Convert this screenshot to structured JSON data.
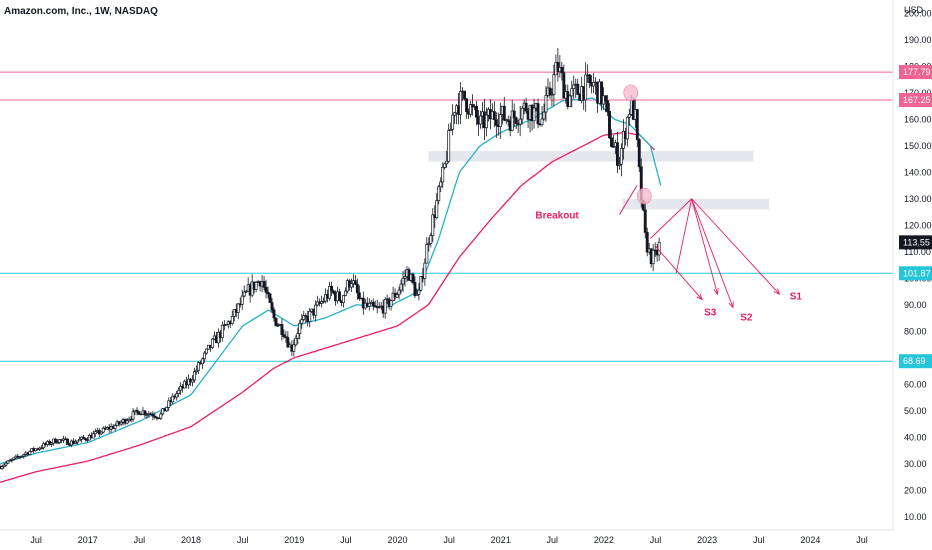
{
  "header": {
    "title": "Amazon.com, Inc., 1W, NASDAQ"
  },
  "colors": {
    "up_candle": "#131722",
    "down_candle": "#131722",
    "ma_fast": "#26b0c9",
    "ma_slow": "#e91e63",
    "support_line": "#26c6da",
    "resistance_line": "#f06292",
    "zone_fill": "#d1d4dc",
    "projection": "#e91e63",
    "circle_fill": "#f8bbd0",
    "price_badge": "#131722",
    "support_badge": "#26c6da",
    "resistance_badge": "#f06292"
  },
  "chart_data": {
    "type": "candlestick",
    "unit": "USD",
    "ylim": [
      5,
      205
    ],
    "xlim": [
      2016.15,
      2024.8
    ],
    "y_ticks": [
      10,
      20,
      30,
      40,
      50,
      60,
      70,
      80,
      90,
      100,
      110,
      120,
      130,
      140,
      150,
      160,
      170,
      180,
      190,
      200
    ],
    "x_ticks": [
      {
        "value": 2016.5,
        "label": "Jul"
      },
      {
        "value": 2017.0,
        "label": "2017"
      },
      {
        "value": 2017.5,
        "label": "Jul"
      },
      {
        "value": 2018.0,
        "label": "2018"
      },
      {
        "value": 2018.5,
        "label": "Jul"
      },
      {
        "value": 2019.0,
        "label": "2019"
      },
      {
        "value": 2019.5,
        "label": "Jul"
      },
      {
        "value": 2020.0,
        "label": "2020"
      },
      {
        "value": 2020.5,
        "label": "Jul"
      },
      {
        "value": 2021.0,
        "label": "2021"
      },
      {
        "value": 2021.5,
        "label": "Jul"
      },
      {
        "value": 2022.0,
        "label": "2022"
      },
      {
        "value": 2022.5,
        "label": "Jul"
      },
      {
        "value": 2023.0,
        "label": "2023"
      },
      {
        "value": 2023.5,
        "label": "Jul"
      },
      {
        "value": 2024.0,
        "label": "2024"
      },
      {
        "value": 2024.5,
        "label": "Jul"
      }
    ],
    "price_anchors": [
      [
        2016.15,
        29
      ],
      [
        2016.4,
        34
      ],
      [
        2016.7,
        39
      ],
      [
        2016.85,
        38
      ],
      [
        2017.0,
        40
      ],
      [
        2017.3,
        45
      ],
      [
        2017.5,
        50
      ],
      [
        2017.7,
        48
      ],
      [
        2017.85,
        56
      ],
      [
        2018.0,
        62
      ],
      [
        2018.2,
        75
      ],
      [
        2018.4,
        85
      ],
      [
        2018.55,
        95
      ],
      [
        2018.68,
        100
      ],
      [
        2018.8,
        85
      ],
      [
        2018.9,
        80
      ],
      [
        2018.97,
        73
      ],
      [
        2019.05,
        82
      ],
      [
        2019.2,
        88
      ],
      [
        2019.35,
        95
      ],
      [
        2019.45,
        92
      ],
      [
        2019.55,
        100
      ],
      [
        2019.65,
        90
      ],
      [
        2019.8,
        88
      ],
      [
        2019.9,
        90
      ],
      [
        2020.0,
        95
      ],
      [
        2020.1,
        103
      ],
      [
        2020.2,
        92
      ],
      [
        2020.3,
        115
      ],
      [
        2020.45,
        140
      ],
      [
        2020.55,
        165
      ],
      [
        2020.65,
        168
      ],
      [
        2020.8,
        158
      ],
      [
        2020.95,
        162
      ],
      [
        2021.1,
        160
      ],
      [
        2021.25,
        165
      ],
      [
        2021.4,
        160
      ],
      [
        2021.55,
        180
      ],
      [
        2021.65,
        168
      ],
      [
        2021.8,
        172
      ],
      [
        2021.9,
        173
      ],
      [
        2022.0,
        167
      ],
      [
        2022.08,
        150
      ],
      [
        2022.15,
        145
      ],
      [
        2022.25,
        165
      ],
      [
        2022.3,
        162
      ],
      [
        2022.35,
        135
      ],
      [
        2022.4,
        115
      ],
      [
        2022.45,
        108
      ],
      [
        2022.5,
        108
      ],
      [
        2022.55,
        114
      ]
    ],
    "ma_fast_anchors": [
      [
        2016.15,
        30
      ],
      [
        2016.5,
        34
      ],
      [
        2017.0,
        38
      ],
      [
        2017.5,
        46
      ],
      [
        2018.0,
        56
      ],
      [
        2018.5,
        82
      ],
      [
        2018.75,
        88
      ],
      [
        2019.0,
        82
      ],
      [
        2019.3,
        85
      ],
      [
        2019.6,
        90
      ],
      [
        2019.9,
        89
      ],
      [
        2020.2,
        95
      ],
      [
        2020.4,
        115
      ],
      [
        2020.6,
        140
      ],
      [
        2020.8,
        150
      ],
      [
        2021.0,
        155
      ],
      [
        2021.3,
        160
      ],
      [
        2021.6,
        167
      ],
      [
        2021.9,
        168
      ],
      [
        2022.1,
        160
      ],
      [
        2022.25,
        158
      ],
      [
        2022.45,
        150
      ],
      [
        2022.55,
        135
      ]
    ],
    "ma_slow_anchors": [
      [
        2016.15,
        23
      ],
      [
        2016.5,
        27
      ],
      [
        2017.0,
        31
      ],
      [
        2017.5,
        37
      ],
      [
        2018.0,
        44
      ],
      [
        2018.5,
        57
      ],
      [
        2018.8,
        66
      ],
      [
        2019.0,
        70
      ],
      [
        2019.5,
        76
      ],
      [
        2020.0,
        82
      ],
      [
        2020.3,
        90
      ],
      [
        2020.6,
        108
      ],
      [
        2020.9,
        122
      ],
      [
        2021.2,
        135
      ],
      [
        2021.5,
        144
      ],
      [
        2021.8,
        150
      ],
      [
        2022.0,
        154
      ],
      [
        2022.2,
        155
      ],
      [
        2022.35,
        154
      ],
      [
        2022.5,
        148
      ]
    ],
    "last_price": 113.55,
    "horizontal_levels": [
      {
        "value": 177.79,
        "label": "177.79",
        "kind": "resistance"
      },
      {
        "value": 167.25,
        "label": "167.25",
        "kind": "resistance"
      },
      {
        "value": 101.87,
        "label": "101.87",
        "kind": "support"
      },
      {
        "value": 68.69,
        "label": "68.69",
        "kind": "support"
      }
    ],
    "zones": [
      {
        "x0": 2020.3,
        "x1": 2023.45,
        "y0": 144,
        "y1": 148
      },
      {
        "x0": 2022.18,
        "x1": 2023.6,
        "y0": 126,
        "y1": 130
      }
    ],
    "circles": [
      {
        "x": 2022.26,
        "y": 170
      },
      {
        "x": 2022.39,
        "y": 131
      }
    ],
    "breakout_label": "Breakout",
    "breakout_arrow": {
      "from": [
        2022.15,
        124
      ],
      "to": [
        2022.32,
        135
      ]
    },
    "projection_segments": [
      [
        [
          2022.45,
          115
        ],
        [
          2022.85,
          130
        ]
      ],
      [
        [
          2022.7,
          102
        ],
        [
          2022.85,
          130
        ]
      ],
      [
        [
          2022.85,
          130
        ],
        [
          2023.7,
          94
        ]
      ],
      [
        [
          2022.85,
          130
        ],
        [
          2023.25,
          89
        ]
      ],
      [
        [
          2022.85,
          130
        ],
        [
          2023.1,
          94
        ]
      ],
      [
        [
          2022.5,
          112
        ],
        [
          2022.95,
          92
        ]
      ]
    ],
    "scenario_labels": [
      {
        "text": "S1",
        "x": 2023.8,
        "y": 92
      },
      {
        "text": "S2",
        "x": 2023.32,
        "y": 84
      },
      {
        "text": "S3",
        "x": 2022.97,
        "y": 86
      }
    ]
  }
}
